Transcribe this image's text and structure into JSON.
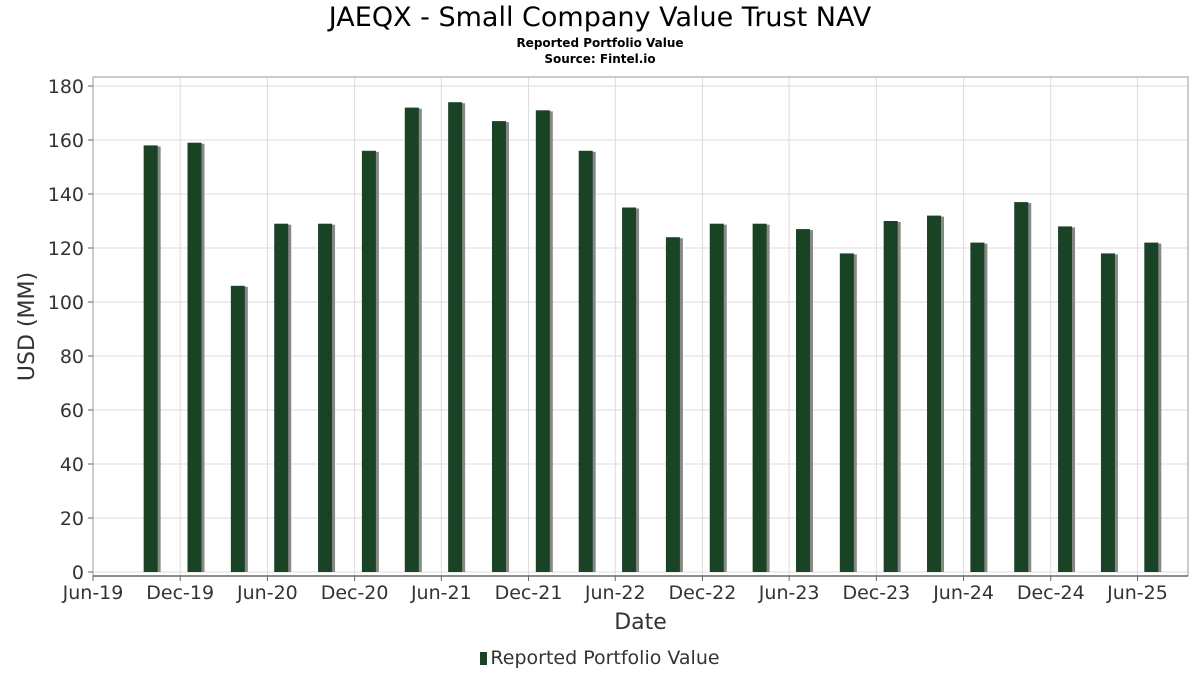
{
  "title": "JAEQX - Small Company Value Trust NAV",
  "subtitle": "Reported Portfolio Value",
  "source": "Source: Fintel.io",
  "colors": {
    "bar": "#1a4326",
    "shadow": "#888888",
    "grid": "#dddddd",
    "frame": "#999999"
  },
  "chart_data": {
    "type": "bar",
    "title": "JAEQX - Small Company Value Trust NAV",
    "xlabel": "Date",
    "ylabel": "USD (MM)",
    "ylim": [
      0,
      180
    ],
    "yticks": [
      0,
      20,
      40,
      60,
      80,
      100,
      120,
      140,
      160,
      180
    ],
    "xlim": [
      "2019-06-01",
      "2025-09-15"
    ],
    "xticks": [
      {
        "label": "Jun-19",
        "date": "2019-06-01"
      },
      {
        "label": "Dec-19",
        "date": "2019-12-01"
      },
      {
        "label": "Jun-20",
        "date": "2020-06-01"
      },
      {
        "label": "Dec-20",
        "date": "2020-12-01"
      },
      {
        "label": "Jun-21",
        "date": "2021-06-01"
      },
      {
        "label": "Dec-21",
        "date": "2021-12-01"
      },
      {
        "label": "Jun-22",
        "date": "2022-06-01"
      },
      {
        "label": "Dec-22",
        "date": "2022-12-01"
      },
      {
        "label": "Jun-23",
        "date": "2023-06-01"
      },
      {
        "label": "Dec-23",
        "date": "2023-12-01"
      },
      {
        "label": "Jun-24",
        "date": "2024-06-01"
      },
      {
        "label": "Dec-24",
        "date": "2024-12-01"
      },
      {
        "label": "Jun-25",
        "date": "2025-06-01"
      }
    ],
    "grid": true,
    "legend_position": "bottom",
    "series": [
      {
        "name": "Reported Portfolio Value",
        "points": [
          {
            "x": "2019-09-30",
            "y": 158
          },
          {
            "x": "2019-12-31",
            "y": 159
          },
          {
            "x": "2020-03-31",
            "y": 106
          },
          {
            "x": "2020-06-30",
            "y": 129
          },
          {
            "x": "2020-09-30",
            "y": 129
          },
          {
            "x": "2020-12-31",
            "y": 156
          },
          {
            "x": "2021-03-31",
            "y": 172
          },
          {
            "x": "2021-06-30",
            "y": 174
          },
          {
            "x": "2021-09-30",
            "y": 167
          },
          {
            "x": "2021-12-31",
            "y": 171
          },
          {
            "x": "2022-03-31",
            "y": 156
          },
          {
            "x": "2022-06-30",
            "y": 135
          },
          {
            "x": "2022-09-30",
            "y": 124
          },
          {
            "x": "2022-12-31",
            "y": 129
          },
          {
            "x": "2023-03-31",
            "y": 129
          },
          {
            "x": "2023-06-30",
            "y": 127
          },
          {
            "x": "2023-09-30",
            "y": 118
          },
          {
            "x": "2023-12-31",
            "y": 130
          },
          {
            "x": "2024-03-31",
            "y": 132
          },
          {
            "x": "2024-06-30",
            "y": 122
          },
          {
            "x": "2024-09-30",
            "y": 137
          },
          {
            "x": "2024-12-31",
            "y": 128
          },
          {
            "x": "2025-03-31",
            "y": 118
          },
          {
            "x": "2025-06-30",
            "y": 122
          }
        ]
      }
    ]
  }
}
